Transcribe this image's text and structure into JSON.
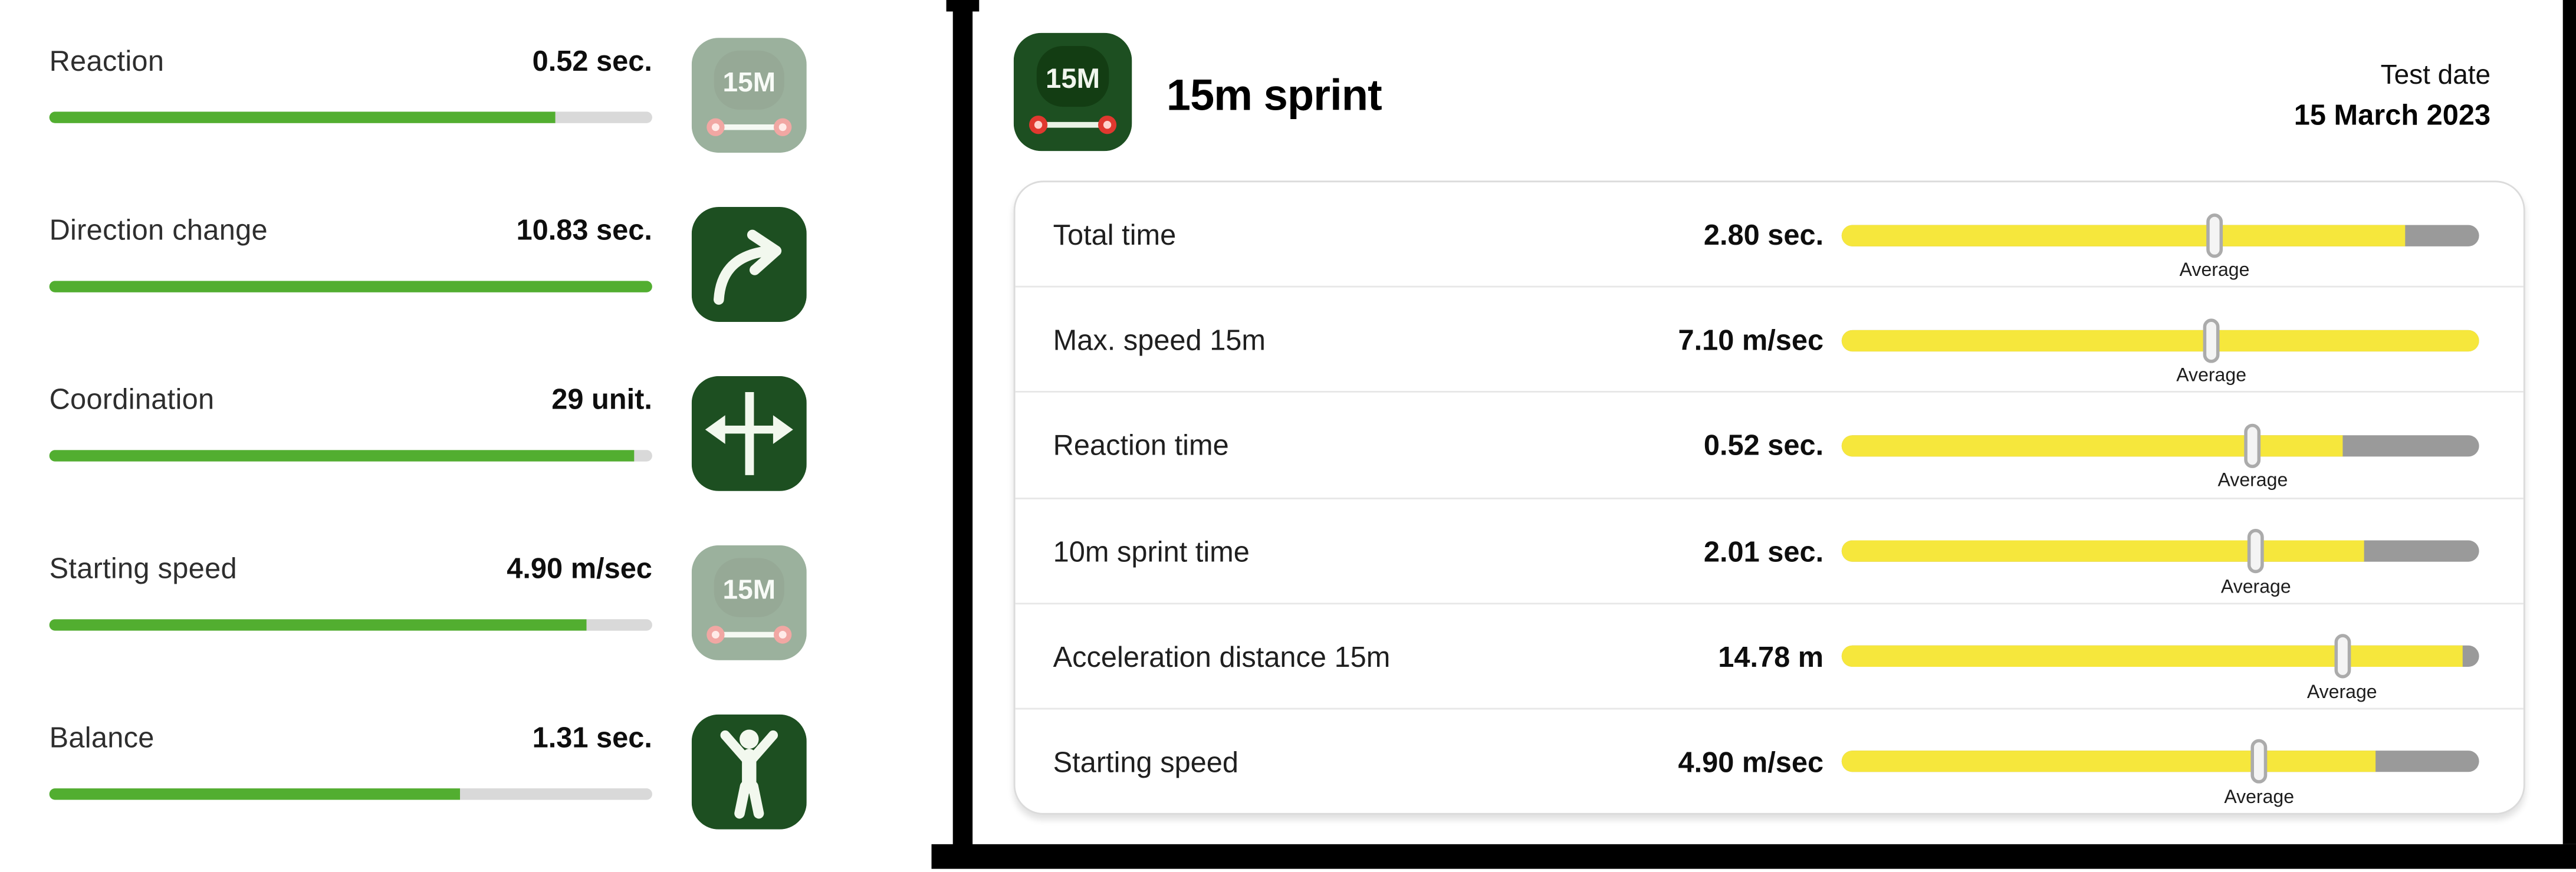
{
  "left_panel": {
    "metrics": [
      {
        "label": "Reaction",
        "value": "0.52 sec.",
        "progress_pct": 84,
        "icon": "15m-distance",
        "faded": true
      },
      {
        "label": "Direction change",
        "value": "10.83 sec.",
        "progress_pct": 100,
        "icon": "curved-arrow",
        "faded": false
      },
      {
        "label": "Coordination",
        "value": "29 unit.",
        "progress_pct": 97,
        "icon": "cross-arrows",
        "faded": false
      },
      {
        "label": "Starting speed",
        "value": "4.90 m/sec",
        "progress_pct": 89,
        "icon": "15m-distance",
        "faded": true
      },
      {
        "label": "Balance",
        "value": "1.31 sec.",
        "progress_pct": 68,
        "icon": "person-arms-up",
        "faded": false
      }
    ]
  },
  "right_panel": {
    "icon": "15m-distance",
    "icon_badge_text": "15M",
    "title": "15m sprint",
    "test_date_label": "Test date",
    "test_date_value": "15 March 2023",
    "average_label": "Average",
    "rows": [
      {
        "label": "Total time",
        "value": "2.80 sec.",
        "fill_pct": 88.5,
        "average_pct": 58.5
      },
      {
        "label": "Max. speed 15m",
        "value": "7.10 m/sec",
        "fill_pct": 100,
        "average_pct": 58
      },
      {
        "label": "Reaction time",
        "value": "0.52 sec.",
        "fill_pct": 78.5,
        "average_pct": 64.5
      },
      {
        "label": "10m sprint time",
        "value": "2.01 sec.",
        "fill_pct": 82,
        "average_pct": 65
      },
      {
        "label": "Acceleration distance 15m",
        "value": "14.78 m",
        "fill_pct": 97.3,
        "average_pct": 78.5
      },
      {
        "label": "Starting speed",
        "value": "4.90 m/sec",
        "fill_pct": 83.8,
        "average_pct": 65.5
      }
    ]
  },
  "colors": {
    "green_bar": "#52ae30",
    "track_gray": "#d9d9d9",
    "yellow_bar": "#f6e73c",
    "bar_gray": "#9a9a9a",
    "icon_green": "#1d4f21",
    "dot_red": "#e0382f"
  }
}
